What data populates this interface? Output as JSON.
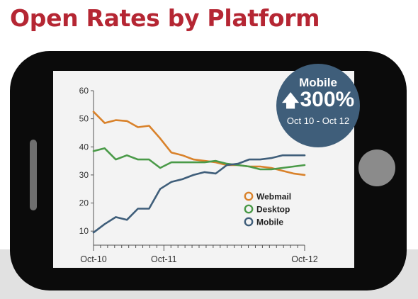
{
  "page": {
    "title": "Open Rates by Platform"
  },
  "badge": {
    "title": "Mobile",
    "arrow_icon": "up-arrow-icon",
    "value": "300%",
    "range": "Oct 10 - Oct 12"
  },
  "chart_data": {
    "type": "line",
    "title": "Open Rates by Platform",
    "xlabel": "",
    "ylabel": "",
    "x_tick_labels": [
      "Oct-10",
      "Oct-11",
      "Oct-12"
    ],
    "x_tick_positions": [
      0,
      10,
      30
    ],
    "yticks": [
      10,
      20,
      30,
      40,
      50,
      60
    ],
    "ylim": [
      5,
      60
    ],
    "xlim": [
      0,
      30
    ],
    "grid": false,
    "legend_position": "right-bottom",
    "x": [
      0,
      1,
      2,
      3,
      4,
      5,
      6,
      7,
      8,
      9,
      10,
      11,
      12,
      13,
      14,
      15,
      16,
      17,
      18,
      19,
      20,
      21,
      22,
      23,
      24,
      25,
      26,
      27,
      28,
      29,
      30
    ],
    "series": [
      {
        "name": "Webmail",
        "color": "#d9822b",
        "values": [
          52.5,
          48.5,
          49.5,
          49.2,
          47,
          47.5,
          43,
          38,
          37,
          35.5,
          35,
          34.5,
          33.5,
          33.5,
          33,
          33,
          32.5,
          31.5,
          30.5,
          30,
          null,
          null,
          null,
          null,
          null,
          null,
          null,
          null,
          null,
          null,
          null
        ]
      },
      {
        "name": "Desktop",
        "color": "#4a9a48",
        "values": [
          38.5,
          39.5,
          35.5,
          37,
          35.5,
          35.5,
          32.5,
          34.5,
          34.5,
          34.5,
          34.5,
          35,
          34,
          33.5,
          33,
          32,
          32,
          32.5,
          33,
          33.5,
          null,
          null,
          null,
          null,
          null,
          null,
          null,
          null,
          null,
          null,
          null
        ]
      },
      {
        "name": "Mobile",
        "color": "#3f5e7a",
        "values": [
          9.5,
          12.5,
          15,
          14,
          18,
          18,
          25,
          27.5,
          28.5,
          30,
          31,
          30.5,
          33.5,
          34,
          35.5,
          35.5,
          36,
          37,
          37,
          37,
          null,
          null,
          null,
          null,
          null,
          null,
          null,
          null,
          null,
          null,
          null
        ]
      }
    ]
  }
}
